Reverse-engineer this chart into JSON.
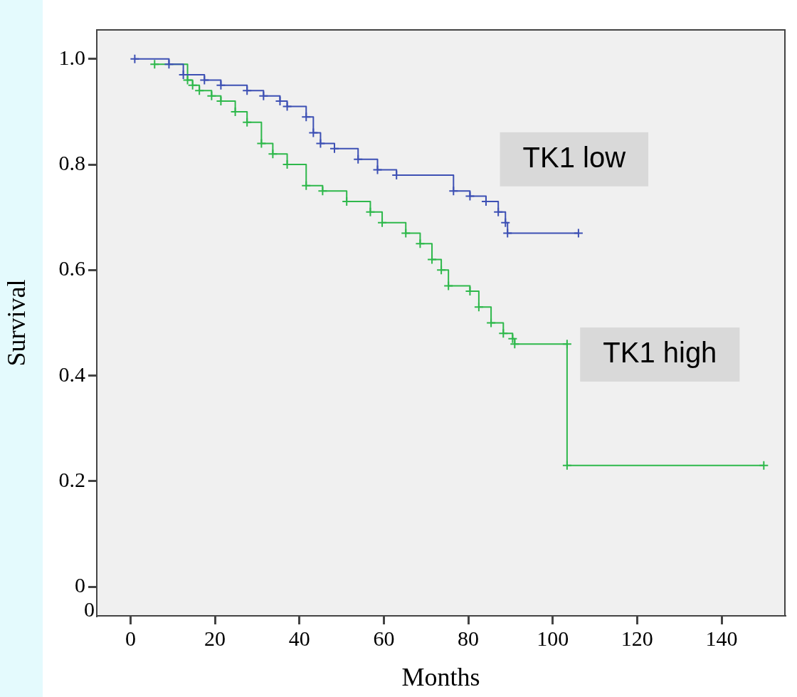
{
  "chart_data": {
    "type": "step",
    "xlabel": "Months",
    "ylabel": "Survival",
    "xlim": [
      -8,
      155
    ],
    "xticks": [
      0,
      20,
      40,
      60,
      80,
      100,
      120,
      140
    ],
    "ylim": [
      -0.055,
      1.055
    ],
    "yticks": [
      0,
      0.2,
      0.4,
      0.6,
      {
        "value": 0.8,
        "label": "0.8"
      },
      {
        "value": 1,
        "label": "1.0"
      }
    ],
    "grid": false,
    "legend": false,
    "marker": "cross",
    "line_style": "solid",
    "annotations": [
      "0"
    ],
    "series": [
      {
        "name": "TK1 low",
        "color": "#3d50b4",
        "x": [
          1,
          9.1,
          12.5,
          17.5,
          21.4,
          27.6,
          31.5,
          35.4,
          37.1,
          41.6,
          43.3,
          45,
          48.3,
          53.9,
          58.5,
          63,
          76.5,
          80.4,
          84.2,
          87.1,
          88.8,
          89.3,
          106.1
        ],
        "values": [
          1,
          0.99,
          0.97,
          0.96,
          0.95,
          0.94,
          0.93,
          0.92,
          0.91,
          0.89,
          0.86,
          0.84,
          0.83,
          0.81,
          0.79,
          0.78,
          0.75,
          0.74,
          0.73,
          0.71,
          0.69,
          0.67,
          0.67
        ]
      },
      {
        "name": "TK1 high",
        "color": "#2eb84b",
        "x": [
          5.7,
          13.5,
          14.7,
          16.3,
          19.2,
          21.4,
          24.8,
          27.6,
          31,
          33.7,
          37.1,
          41.6,
          45.5,
          51.2,
          56.8,
          59.6,
          65.2,
          68.6,
          71.4,
          73.6,
          75.3,
          80.4,
          82.5,
          85.4,
          88.3,
          90.5,
          91,
          103.4,
          103.4,
          150
        ],
        "values": [
          0.99,
          0.96,
          0.95,
          0.94,
          0.93,
          0.92,
          0.9,
          0.88,
          0.84,
          0.82,
          0.8,
          0.76,
          0.75,
          0.73,
          0.71,
          0.69,
          0.67,
          0.65,
          0.62,
          0.6,
          0.57,
          0.56,
          0.53,
          0.5,
          0.48,
          0.47,
          0.46,
          0.46,
          0.23,
          0.23
        ]
      }
    ]
  }
}
